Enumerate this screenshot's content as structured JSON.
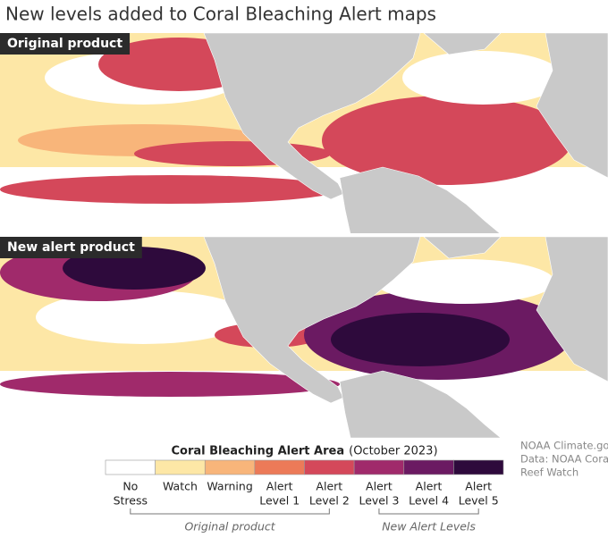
{
  "title": "New levels added to Coral Bleaching Alert maps",
  "panels": [
    {
      "label": "Original product"
    },
    {
      "label": "New alert product"
    }
  ],
  "legend": {
    "title": "Coral Bleaching Alert Area",
    "subtitle": "(October 2023)",
    "items": [
      {
        "lines": [
          "No",
          "Stress"
        ],
        "color": "#ffffff"
      },
      {
        "lines": [
          "Watch"
        ],
        "color": "#fde7a6"
      },
      {
        "lines": [
          "Warning"
        ],
        "color": "#f8b57a"
      },
      {
        "lines": [
          "Alert",
          "Level 1"
        ],
        "color": "#ec7a58"
      },
      {
        "lines": [
          "Alert",
          "Level 2"
        ],
        "color": "#d4485a"
      },
      {
        "lines": [
          "Alert",
          "Level 3"
        ],
        "color": "#a02a6b"
      },
      {
        "lines": [
          "Alert",
          "Level 4"
        ],
        "color": "#6b1a62"
      },
      {
        "lines": [
          "Alert",
          "Level 5"
        ],
        "color": "#2e0a3c"
      }
    ],
    "groups": [
      {
        "label": "Original product",
        "from": 0,
        "to": 4
      },
      {
        "label": "New Alert Levels",
        "from": 5,
        "to": 7
      }
    ]
  },
  "credit": [
    "NOAA Climate.gov",
    "Data: NOAA Coral",
    "Reef Watch"
  ]
}
